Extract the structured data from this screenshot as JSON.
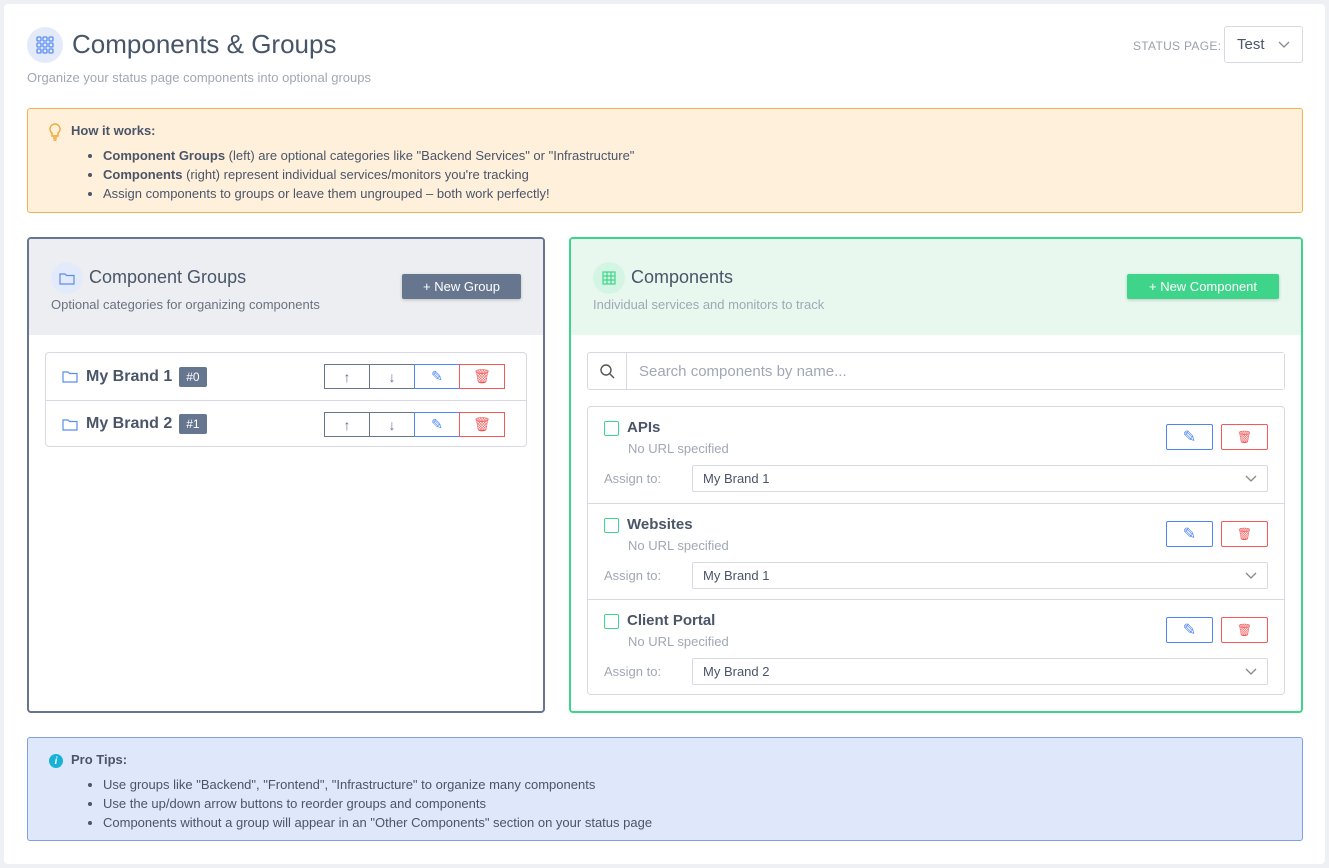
{
  "header": {
    "title": "Components & Groups",
    "subtitle": "Organize your status page components into optional groups",
    "icon": "grid-icon",
    "status_page_label": "STATUS PAGE:",
    "status_page_value": "Test"
  },
  "how_it_works": {
    "title": "How it works:",
    "items": [
      {
        "bold": "Component Groups",
        "text": " (left) are optional categories like \"Backend Services\" or \"Infrastructure\""
      },
      {
        "bold": "Components",
        "text": " (right) represent individual services/monitors you're tracking"
      },
      {
        "bold": "",
        "text": "Assign components to groups or leave them ungrouped – both work perfectly!"
      }
    ]
  },
  "groups_panel": {
    "title": "Component Groups",
    "subtitle": "Optional categories for organizing components",
    "new_button": "+ New Group",
    "groups": [
      {
        "name": "My Brand 1",
        "badge": "#0"
      },
      {
        "name": "My Brand 2",
        "badge": "#1"
      }
    ]
  },
  "components_panel": {
    "title": "Components",
    "subtitle": "Individual services and monitors to track",
    "new_button": "+ New Component",
    "search_placeholder": "Search components by name...",
    "assign_label": "Assign to:",
    "components": [
      {
        "name": "APIs",
        "url": "No URL specified",
        "group": "My Brand 1"
      },
      {
        "name": "Websites",
        "url": "No URL specified",
        "group": "My Brand 1"
      },
      {
        "name": "Client Portal",
        "url": "No URL specified",
        "group": "My Brand 2"
      }
    ]
  },
  "pro_tips": {
    "title": "Pro Tips:",
    "items": [
      "Use groups like \"Backend\", \"Frontend\", \"Infrastructure\" to organize many components",
      "Use the up/down arrow buttons to reorder groups and components",
      "Components without a group will appear in an \"Other Components\" section on your status page"
    ]
  },
  "colors": {
    "groups_accent": "#66768f",
    "components_accent": "#3ed58a",
    "edit": "#4f86f7",
    "delete": "#f25a5a",
    "warning_bg": "#fff0dc",
    "info_bg": "#dfe8fa"
  }
}
